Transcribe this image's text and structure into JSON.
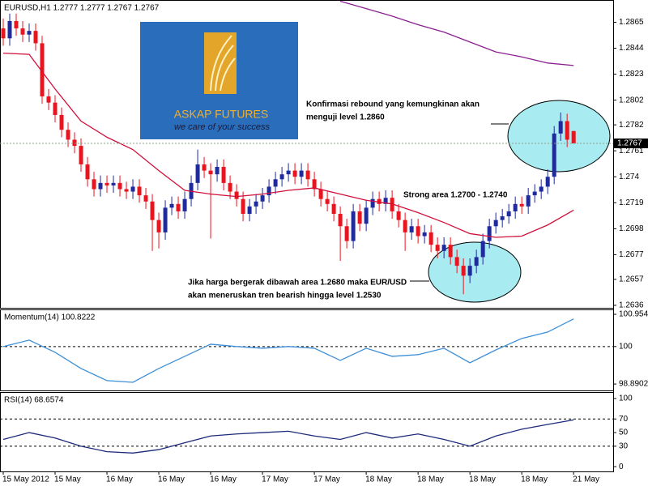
{
  "chart_data": [
    {
      "type": "candlestick",
      "title": "EURUSD,H1  1.2777  1.2777  1.2767  1.2767",
      "xlim": [
        -0.5,
        94.1
      ],
      "ylim": [
        1.2634,
        1.2883
      ],
      "yticks": [
        1.2865,
        1.2844,
        1.2823,
        1.2802,
        1.2782,
        1.2761,
        1.274,
        1.2719,
        1.2698,
        1.2677,
        1.2657,
        1.2636
      ],
      "up_color": "#1f2a9c",
      "down_color": "#e8141e",
      "candles": [
        [
          1.286,
          1.2868,
          1.2846,
          1.2852
        ],
        [
          1.2852,
          1.2872,
          1.2846,
          1.2866
        ],
        [
          1.2866,
          1.2872,
          1.2854,
          1.286
        ],
        [
          1.286,
          1.2866,
          1.2849,
          1.2855
        ],
        [
          1.2855,
          1.2864,
          1.2849,
          1.2858
        ],
        [
          1.2858,
          1.2864,
          1.2842,
          1.2848
        ],
        [
          1.2848,
          1.2854,
          1.2799,
          1.2805
        ],
        [
          1.2805,
          1.2811,
          1.2794,
          1.28
        ],
        [
          1.28,
          1.2806,
          1.2784,
          1.279
        ],
        [
          1.279,
          1.2796,
          1.2772,
          1.2778
        ],
        [
          1.2778,
          1.2784,
          1.2764,
          1.277
        ],
        [
          1.277,
          1.2776,
          1.2759,
          1.2765
        ],
        [
          1.2765,
          1.2771,
          1.2744,
          1.275
        ],
        [
          1.275,
          1.2756,
          1.2732,
          1.2738
        ],
        [
          1.2738,
          1.2744,
          1.2724,
          1.273
        ],
        [
          1.273,
          1.2741,
          1.2724,
          1.2735
        ],
        [
          1.2735,
          1.2741,
          1.2727,
          1.2733
        ],
        [
          1.2733,
          1.2741,
          1.2727,
          1.2735
        ],
        [
          1.2735,
          1.2741,
          1.2724,
          1.273
        ],
        [
          1.273,
          1.2736,
          1.2722,
          1.2728
        ],
        [
          1.2728,
          1.2738,
          1.2722,
          1.2732
        ],
        [
          1.2732,
          1.2738,
          1.2719,
          1.2725
        ],
        [
          1.2725,
          1.2731,
          1.2714,
          1.272
        ],
        [
          1.272,
          1.2726,
          1.268,
          1.2705
        ],
        [
          1.2705,
          1.2711,
          1.2682,
          1.2695
        ],
        [
          1.2695,
          1.2721,
          1.2689,
          1.2715
        ],
        [
          1.2715,
          1.2724,
          1.2709,
          1.2718
        ],
        [
          1.2718,
          1.2724,
          1.2706,
          1.2712
        ],
        [
          1.2712,
          1.2728,
          1.2706,
          1.2722
        ],
        [
          1.2722,
          1.2741,
          1.2716,
          1.2735
        ],
        [
          1.2735,
          1.2762,
          1.2729,
          1.275
        ],
        [
          1.275,
          1.2756,
          1.2739,
          1.2745
        ],
        [
          1.2745,
          1.2751,
          1.269,
          1.2742
        ],
        [
          1.2742,
          1.2754,
          1.2736,
          1.2748
        ],
        [
          1.2748,
          1.2754,
          1.2729,
          1.2735
        ],
        [
          1.2735,
          1.2741,
          1.2722,
          1.2728
        ],
        [
          1.2728,
          1.2734,
          1.2716,
          1.2722
        ],
        [
          1.2722,
          1.2728,
          1.2704,
          1.271
        ],
        [
          1.271,
          1.2722,
          1.2704,
          1.2716
        ],
        [
          1.2716,
          1.2726,
          1.271,
          1.272
        ],
        [
          1.272,
          1.2731,
          1.2714,
          1.2725
        ],
        [
          1.2725,
          1.2738,
          1.2719,
          1.2732
        ],
        [
          1.2732,
          1.2744,
          1.2726,
          1.2738
        ],
        [
          1.2738,
          1.2748,
          1.2732,
          1.2742
        ],
        [
          1.2742,
          1.2751,
          1.2736,
          1.2745
        ],
        [
          1.2745,
          1.2751,
          1.2734,
          1.274
        ],
        [
          1.274,
          1.2751,
          1.2734,
          1.2745
        ],
        [
          1.2745,
          1.2751,
          1.2732,
          1.2738
        ],
        [
          1.2738,
          1.2744,
          1.2724,
          1.273
        ],
        [
          1.273,
          1.2736,
          1.2716,
          1.2722
        ],
        [
          1.2722,
          1.2728,
          1.2712,
          1.2718
        ],
        [
          1.2718,
          1.2724,
          1.2704,
          1.271
        ],
        [
          1.271,
          1.2716,
          1.2672,
          1.27
        ],
        [
          1.27,
          1.2706,
          1.2682,
          1.2688
        ],
        [
          1.2688,
          1.2718,
          1.2682,
          1.2712
        ],
        [
          1.2712,
          1.2718,
          1.2696,
          1.2702
        ],
        [
          1.2702,
          1.2721,
          1.2696,
          1.2715
        ],
        [
          1.2715,
          1.2728,
          1.2709,
          1.2722
        ],
        [
          1.2722,
          1.2728,
          1.2712,
          1.2718
        ],
        [
          1.2718,
          1.2729,
          1.2712,
          1.2723
        ],
        [
          1.2723,
          1.2729,
          1.2706,
          1.2712
        ],
        [
          1.2712,
          1.2718,
          1.2699,
          1.2705
        ],
        [
          1.2705,
          1.2711,
          1.268,
          1.2695
        ],
        [
          1.2695,
          1.2706,
          1.2689,
          1.27
        ],
        [
          1.27,
          1.2706,
          1.2686,
          1.2692
        ],
        [
          1.2692,
          1.2701,
          1.2686,
          1.2695
        ],
        [
          1.2695,
          1.2701,
          1.2679,
          1.2685
        ],
        [
          1.2685,
          1.2691,
          1.2674,
          1.268
        ],
        [
          1.268,
          1.2691,
          1.2674,
          1.2685
        ],
        [
          1.2685,
          1.2691,
          1.2669,
          1.2675
        ],
        [
          1.2675,
          1.2681,
          1.2662,
          1.2668
        ],
        [
          1.2668,
          1.2674,
          1.2645,
          1.266
        ],
        [
          1.266,
          1.2674,
          1.2654,
          1.2668
        ],
        [
          1.2668,
          1.2681,
          1.2662,
          1.2675
        ],
        [
          1.2675,
          1.2694,
          1.2669,
          1.2688
        ],
        [
          1.2688,
          1.2706,
          1.2682,
          1.27
        ],
        [
          1.27,
          1.2711,
          1.2694,
          1.2705
        ],
        [
          1.2705,
          1.2714,
          1.2699,
          1.2708
        ],
        [
          1.2708,
          1.2718,
          1.2702,
          1.2712
        ],
        [
          1.2712,
          1.2724,
          1.2706,
          1.2718
        ],
        [
          1.2718,
          1.2724,
          1.271,
          1.2716
        ],
        [
          1.2716,
          1.2731,
          1.271,
          1.2725
        ],
        [
          1.2725,
          1.2734,
          1.2719,
          1.2728
        ],
        [
          1.2728,
          1.2738,
          1.2722,
          1.2732
        ],
        [
          1.2732,
          1.2746,
          1.2726,
          1.274
        ],
        [
          1.274,
          1.2781,
          1.2734,
          1.2775
        ],
        [
          1.2775,
          1.2792,
          1.2769,
          1.2785
        ],
        [
          1.2785,
          1.2791,
          1.2764,
          1.277
        ],
        [
          1.2777,
          1.2777,
          1.2767,
          1.2767
        ]
      ],
      "lines": [
        {
          "color": "#d0103a",
          "x": [
            0,
            4,
            8,
            12,
            16,
            20,
            24,
            28,
            32,
            36,
            40,
            44,
            48,
            52,
            56,
            60,
            64,
            68,
            72,
            76,
            80,
            84,
            88
          ],
          "values": [
            1.284,
            1.2839,
            1.2811,
            1.2785,
            1.2772,
            1.2762,
            1.2745,
            1.2729,
            1.2726,
            1.2724,
            1.2726,
            1.2729,
            1.2731,
            1.2726,
            1.2721,
            1.2718,
            1.2711,
            1.2703,
            1.2694,
            1.2691,
            1.2692,
            1.2701,
            1.2713
          ]
        },
        {
          "color": "#8a1f8f",
          "x": [
            52,
            56,
            60,
            64,
            68,
            72,
            76,
            80,
            84,
            88
          ],
          "values": [
            1.2882,
            1.2876,
            1.287,
            1.2863,
            1.2857,
            1.2849,
            1.2841,
            1.2837,
            1.2832,
            1.283
          ]
        }
      ],
      "current_price": 1.2767,
      "annotations": [
        "Konfirmasi rebound yang kemungkinan akan",
        "menguji level 1.2860",
        "Strong area 1.2700 - 1.2740",
        "Jika harga bergerak dibawah area 1.2680 maka EUR/USD",
        "akan meneruskan tren bearish hingga level 1.2530"
      ],
      "logo": {
        "title": "ASKAP FUTURES",
        "tagline": "we care of your success"
      }
    },
    {
      "type": "line",
      "title": "Momentum(14) 100.8222",
      "xlim": [
        -0.5,
        94.1
      ],
      "ylim": [
        98.7,
        101.1
      ],
      "yticks": [
        100.9543,
        100,
        98.8902
      ],
      "levels": [
        100
      ],
      "color": "#3d8fd6",
      "x": [
        0,
        4,
        8,
        12,
        16,
        20,
        24,
        28,
        32,
        36,
        40,
        44,
        48,
        52,
        56,
        60,
        64,
        68,
        72,
        76,
        80,
        84,
        88
      ],
      "values": [
        100.0,
        100.19,
        99.83,
        99.35,
        98.99,
        98.94,
        99.35,
        99.71,
        100.07,
        100.0,
        99.95,
        100.0,
        99.95,
        99.59,
        99.95,
        99.71,
        99.76,
        99.95,
        99.52,
        99.9,
        100.24,
        100.43,
        100.82
      ]
    },
    {
      "type": "line",
      "title": "RSI(14) 68.6574",
      "xlim": [
        -0.5,
        94.1
      ],
      "ylim": [
        -7,
        109.5
      ],
      "yticks": [
        100,
        70,
        50,
        30,
        0
      ],
      "levels": [
        70,
        30
      ],
      "color": "#1c2a7a",
      "x": [
        0,
        4,
        8,
        12,
        16,
        20,
        24,
        28,
        32,
        36,
        40,
        44,
        48,
        52,
        56,
        60,
        64,
        68,
        72,
        76,
        80,
        84,
        88
      ],
      "values": [
        40,
        50,
        42,
        30,
        22,
        20,
        25,
        35,
        45,
        48,
        50,
        52,
        45,
        40,
        50,
        42,
        48,
        40,
        30,
        45,
        55,
        62,
        68.66
      ],
      "xticks": [
        {
          "value": 0,
          "label": "15 May 2012"
        },
        {
          "value": 8,
          "label": "15 May"
        },
        {
          "value": 16,
          "label": "16 May"
        },
        {
          "value": 24,
          "label": "16 May"
        },
        {
          "value": 32,
          "label": "16 May"
        },
        {
          "value": 40,
          "label": "17 May"
        },
        {
          "value": 48,
          "label": "17 May"
        },
        {
          "value": 56,
          "label": "18 May"
        },
        {
          "value": 64,
          "label": "18 May"
        },
        {
          "value": 72,
          "label": "18 May"
        },
        {
          "value": 80,
          "label": "18 May"
        },
        {
          "value": 88,
          "label": "21 May"
        }
      ]
    }
  ]
}
